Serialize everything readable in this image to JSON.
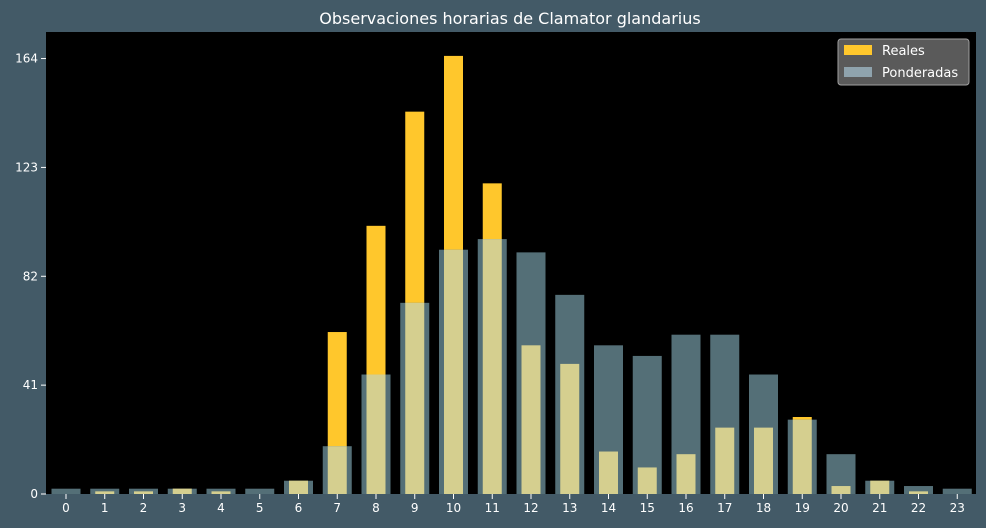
{
  "chart_data": {
    "type": "bar",
    "title": "Observaciones horarias de Clamator glandarius",
    "xlabel": "",
    "ylabel": "",
    "categories": [
      "0",
      "1",
      "2",
      "3",
      "4",
      "5",
      "6",
      "7",
      "8",
      "9",
      "10",
      "11",
      "12",
      "13",
      "14",
      "15",
      "16",
      "17",
      "18",
      "19",
      "20",
      "21",
      "22",
      "23"
    ],
    "series": [
      {
        "name": "Reales",
        "color": "#ffc72c",
        "values": [
          0,
          1,
          1,
          2,
          1,
          0,
          5,
          61,
          101,
          144,
          165,
          117,
          56,
          49,
          16,
          10,
          15,
          25,
          25,
          29,
          3,
          5,
          1,
          0
        ]
      },
      {
        "name": "Ponderadas",
        "color": "#8fa3ad",
        "values": [
          2,
          2,
          2,
          2,
          2,
          2,
          5,
          18,
          45,
          72,
          92,
          96,
          91,
          75,
          56,
          52,
          60,
          60,
          45,
          28,
          15,
          5,
          3,
          2
        ]
      }
    ],
    "yticks": [
      0,
      41,
      82,
      123,
      164
    ],
    "ylim": [
      0,
      174
    ],
    "grid": false,
    "legend_position": "top-right",
    "colors": {
      "page_background": "#435a67",
      "plot_background": "#000000",
      "overlap": "#d5cf8f",
      "ponderadas_bar": "#546f77"
    }
  }
}
